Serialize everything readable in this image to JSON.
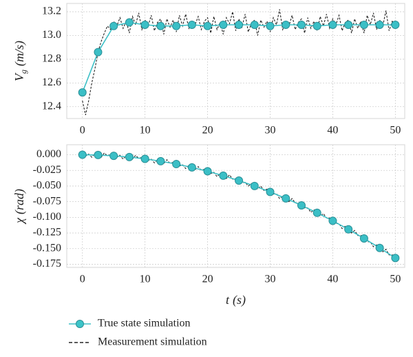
{
  "chart_data": [
    {
      "type": "line",
      "ylabel": "V",
      "ylabel_sub": "g",
      "ylabel_unit": "(m/s)",
      "xlim": [
        -2.5,
        51.5
      ],
      "ylim": [
        12.3,
        13.27
      ],
      "xticks": [
        0,
        10,
        20,
        30,
        40,
        50
      ],
      "yticks": [
        12.4,
        12.6,
        12.8,
        {
          "value": 13,
          "label": "13.0"
        },
        13.2
      ],
      "grid": true,
      "series": [
        {
          "name": "Measurement simulation",
          "color": "#222222",
          "style": "dashed",
          "x": [
            0,
            0.5,
            1,
            1.5,
            2,
            2.5,
            3,
            3.5,
            4,
            4.5,
            5,
            5.5,
            6,
            6.5,
            7,
            7.5,
            8,
            8.5,
            9,
            9.5,
            10,
            10.5,
            11,
            11.5,
            12,
            12.5,
            13,
            13.5,
            14,
            14.5,
            15,
            15.5,
            16,
            16.5,
            17,
            17.5,
            18,
            18.5,
            19,
            19.5,
            20,
            20.5,
            21,
            21.5,
            22,
            22.5,
            23,
            23.5,
            24,
            24.5,
            25,
            25.5,
            26,
            26.5,
            27,
            27.5,
            28,
            28.5,
            29,
            29.5,
            30,
            30.5,
            31,
            31.5,
            32,
            32.5,
            33,
            33.5,
            34,
            34.5,
            35,
            35.5,
            36,
            36.5,
            37,
            37.5,
            38,
            38.5,
            39,
            39.5,
            40,
            40.5,
            41,
            41.5,
            42,
            42.5,
            43,
            43.5,
            44,
            44.5,
            45,
            45.5,
            46,
            46.5,
            47,
            47.5,
            48,
            48.5,
            49,
            49.5,
            50
          ],
          "values": [
            12.45,
            12.33,
            12.45,
            12.6,
            12.72,
            12.86,
            12.95,
            13.02,
            13.08,
            13.05,
            13.12,
            13.08,
            13.15,
            13.06,
            13.12,
            13.02,
            13.16,
            13.09,
            13.19,
            13.05,
            13.13,
            13.08,
            13.17,
            13.04,
            13.11,
            13.14,
            13.01,
            13.14,
            13.07,
            13.13,
            13.03,
            13.17,
            13.08,
            13.18,
            13.06,
            13.12,
            13.09,
            13.16,
            13.05,
            13.12,
            13.15,
            13.02,
            13.16,
            13.05,
            13.11,
            13.01,
            13.15,
            13.1,
            13.2,
            13.04,
            13.14,
            13.07,
            13.18,
            13.03,
            13.1,
            13.13,
            13.0,
            13.13,
            13.07,
            13.12,
            13.03,
            13.15,
            13.09,
            13.22,
            13.05,
            13.12,
            13.08,
            13.17,
            13.05,
            13.11,
            13.14,
            13.02,
            13.15,
            13.06,
            13.12,
            13.04,
            13.16,
            13.08,
            13.18,
            13.06,
            13.14,
            13.09,
            13.17,
            13.04,
            13.11,
            13.13,
            13.02,
            13.14,
            13.06,
            13.12,
            13.02,
            13.17,
            13.09,
            13.19,
            13.05,
            13.13,
            13.08,
            13.21,
            13.04,
            13.12,
            13.1
          ]
        },
        {
          "name": "True state simulation",
          "color": "#3bbfc6",
          "style": "markers",
          "x": [
            0,
            2.5,
            5,
            7.5,
            10,
            12.5,
            15,
            17.5,
            20,
            22.5,
            25,
            27.5,
            30,
            32.5,
            35,
            37.5,
            40,
            42.5,
            45,
            47.5,
            50
          ],
          "values": [
            12.52,
            12.86,
            13.08,
            13.11,
            13.09,
            13.08,
            13.08,
            13.09,
            13.08,
            13.09,
            13.09,
            13.09,
            13.08,
            13.09,
            13.09,
            13.08,
            13.09,
            13.09,
            13.09,
            13.09,
            13.09
          ]
        }
      ]
    },
    {
      "type": "line",
      "ylabel": "χ",
      "ylabel_unit": "(rad)",
      "xlabel": "t",
      "xlabel_unit": "(s)",
      "xlim": [
        -2.5,
        51.5
      ],
      "ylim": [
        -0.18,
        0.016
      ],
      "xticks": [
        0,
        10,
        20,
        30,
        40,
        50
      ],
      "yticks": [
        {
          "value": 0,
          "label": "0.000"
        },
        -0.025,
        {
          "value": -0.05,
          "label": "-0.050"
        },
        -0.075,
        {
          "value": -0.1,
          "label": "-0.100"
        },
        -0.125,
        {
          "value": -0.15,
          "label": "-0.150"
        },
        -0.175
      ],
      "grid": true,
      "series": [
        {
          "color": "#222222",
          "style": "dashed",
          "x": [
            0,
            0.5,
            1,
            1.5,
            2,
            2.5,
            3,
            3.5,
            4,
            4.5,
            5,
            5.5,
            6,
            6.5,
            7,
            7.5,
            8,
            8.5,
            9,
            9.5,
            10,
            10.5,
            11,
            11.5,
            12,
            12.5,
            13,
            13.5,
            14,
            14.5,
            15,
            15.5,
            16,
            16.5,
            17,
            17.5,
            18,
            18.5,
            19,
            19.5,
            20,
            20.5,
            21,
            21.5,
            22,
            22.5,
            23,
            23.5,
            24,
            24.5,
            25,
            25.5,
            26,
            26.5,
            27,
            27.5,
            28,
            28.5,
            29,
            29.5,
            30,
            30.5,
            31,
            31.5,
            32,
            32.5,
            33,
            33.5,
            34,
            34.5,
            35,
            35.5,
            36,
            36.5,
            37,
            37.5,
            38,
            38.5,
            39,
            39.5,
            40,
            40.5,
            41,
            41.5,
            42,
            42.5,
            43,
            43.5,
            44,
            44.5,
            45,
            45.5,
            46,
            46.5,
            47,
            47.5,
            48,
            48.5,
            49,
            49.5,
            50
          ],
          "values": [
            0.002,
            -0.002,
            0.001,
            -0.004,
            0.002,
            0,
            -0.004,
            0.003,
            -0.002,
            0.001,
            0.001,
            -0.004,
            -0.001,
            -0.007,
            -0.001,
            -0.004,
            -0.007,
            -0.001,
            -0.006,
            -0.004,
            -0.004,
            -0.009,
            -0.007,
            -0.013,
            -0.008,
            -0.01,
            -0.014,
            -0.008,
            -0.014,
            -0.012,
            -0.012,
            -0.018,
            -0.016,
            -0.022,
            -0.017,
            -0.02,
            -0.024,
            -0.019,
            -0.025,
            -0.023,
            -0.023,
            -0.03,
            -0.028,
            -0.035,
            -0.03,
            -0.033,
            -0.038,
            -0.032,
            -0.039,
            -0.038,
            -0.038,
            -0.045,
            -0.044,
            -0.05,
            -0.046,
            -0.05,
            -0.055,
            -0.05,
            -0.057,
            -0.055,
            -0.056,
            -0.063,
            -0.062,
            -0.07,
            -0.066,
            -0.07,
            -0.075,
            -0.07,
            -0.077,
            -0.077,
            -0.078,
            -0.085,
            -0.085,
            -0.092,
            -0.088,
            -0.093,
            -0.098,
            -0.094,
            -0.101,
            -0.101,
            -0.103,
            -0.11,
            -0.11,
            -0.118,
            -0.114,
            -0.119,
            -0.125,
            -0.121,
            -0.129,
            -0.129,
            -0.131,
            -0.139,
            -0.139,
            -0.147,
            -0.144,
            -0.149,
            -0.155,
            -0.151,
            -0.16,
            -0.16,
            -0.162
          ]
        },
        {
          "color": "#3bbfc6",
          "style": "markers",
          "x": [
            0,
            2.5,
            5,
            7.5,
            10,
            12.5,
            15,
            17.5,
            20,
            22.5,
            25,
            27.5,
            30,
            32.5,
            35,
            37.5,
            40,
            42.5,
            45,
            47.5,
            50
          ],
          "values": [
            0,
            -0.0004,
            -0.0017,
            -0.0037,
            -0.0066,
            -0.0103,
            -0.0149,
            -0.0202,
            -0.0264,
            -0.0334,
            -0.0413,
            -0.0499,
            -0.0594,
            -0.0697,
            -0.0809,
            -0.0928,
            -0.1056,
            -0.1192,
            -0.1337,
            -0.1489,
            -0.165
          ]
        }
      ]
    }
  ]
}
